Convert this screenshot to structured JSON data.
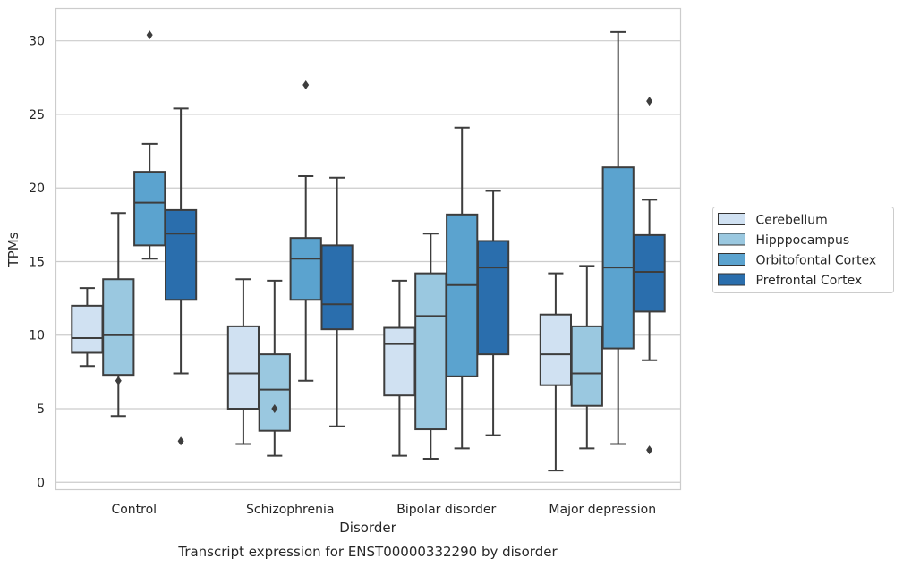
{
  "chart_data": {
    "type": "box",
    "xlabel": "Disorder",
    "ylabel": "TPMs",
    "caption": "Transcript expression for ENST00000332290 by disorder",
    "ylim": [
      -0.5,
      32.2
    ],
    "yticks": [
      0,
      5,
      10,
      15,
      20,
      25,
      30
    ],
    "grid": "horizontal",
    "legend_position": "right",
    "categories": [
      "Control",
      "Schizophrenia",
      "Bipolar disorder",
      "Major depression"
    ],
    "series": [
      {
        "name": "Cerebellum",
        "color": "#d0e1f2",
        "boxes": [
          {
            "whislo": 7.9,
            "q1": 8.8,
            "med": 9.8,
            "q3": 12.0,
            "whishi": 13.2,
            "fliers": []
          },
          {
            "whislo": 2.6,
            "q1": 5.0,
            "med": 7.4,
            "q3": 10.6,
            "whishi": 13.8,
            "fliers": []
          },
          {
            "whislo": 1.8,
            "q1": 5.9,
            "med": 9.4,
            "q3": 10.5,
            "whishi": 13.7,
            "fliers": []
          },
          {
            "whislo": 0.8,
            "q1": 6.6,
            "med": 8.7,
            "q3": 11.4,
            "whishi": 14.2,
            "fliers": []
          }
        ]
      },
      {
        "name": "Hipppocampus",
        "color": "#9ac8e0",
        "boxes": [
          {
            "whislo": 4.5,
            "q1": 7.3,
            "med": 10.0,
            "q3": 13.8,
            "whishi": 18.3,
            "fliers": [
              6.9
            ]
          },
          {
            "whislo": 1.8,
            "q1": 3.5,
            "med": 6.3,
            "q3": 8.7,
            "whishi": 13.7,
            "fliers": [
              5.0
            ]
          },
          {
            "whislo": 1.6,
            "q1": 3.6,
            "med": 11.3,
            "q3": 14.2,
            "whishi": 16.9,
            "fliers": []
          },
          {
            "whislo": 2.3,
            "q1": 5.2,
            "med": 7.4,
            "q3": 10.6,
            "whishi": 14.7,
            "fliers": []
          }
        ]
      },
      {
        "name": "Orbitofontal Cortex",
        "color": "#5ba3cf",
        "boxes": [
          {
            "whislo": 15.2,
            "q1": 16.1,
            "med": 19.0,
            "q3": 21.1,
            "whishi": 23.0,
            "fliers": [
              30.4
            ]
          },
          {
            "whislo": 6.9,
            "q1": 12.4,
            "med": 15.2,
            "q3": 16.6,
            "whishi": 20.8,
            "fliers": [
              27.0
            ]
          },
          {
            "whislo": 2.3,
            "q1": 7.2,
            "med": 13.4,
            "q3": 18.2,
            "whishi": 24.1,
            "fliers": []
          },
          {
            "whislo": 2.6,
            "q1": 9.1,
            "med": 14.6,
            "q3": 21.4,
            "whishi": 30.6,
            "fliers": []
          }
        ]
      },
      {
        "name": "Prefrontal Cortex",
        "color": "#2a6ead",
        "boxes": [
          {
            "whislo": 7.4,
            "q1": 12.4,
            "med": 16.9,
            "q3": 18.5,
            "whishi": 25.4,
            "fliers": [
              2.8
            ]
          },
          {
            "whislo": 3.8,
            "q1": 10.4,
            "med": 12.1,
            "q3": 16.1,
            "whishi": 20.7,
            "fliers": []
          },
          {
            "whislo": 3.2,
            "q1": 8.7,
            "med": 14.6,
            "q3": 16.4,
            "whishi": 19.8,
            "fliers": []
          },
          {
            "whislo": 8.3,
            "q1": 11.6,
            "med": 14.3,
            "q3": 16.8,
            "whishi": 19.2,
            "fliers": [
              25.9,
              2.2
            ]
          }
        ]
      }
    ]
  }
}
